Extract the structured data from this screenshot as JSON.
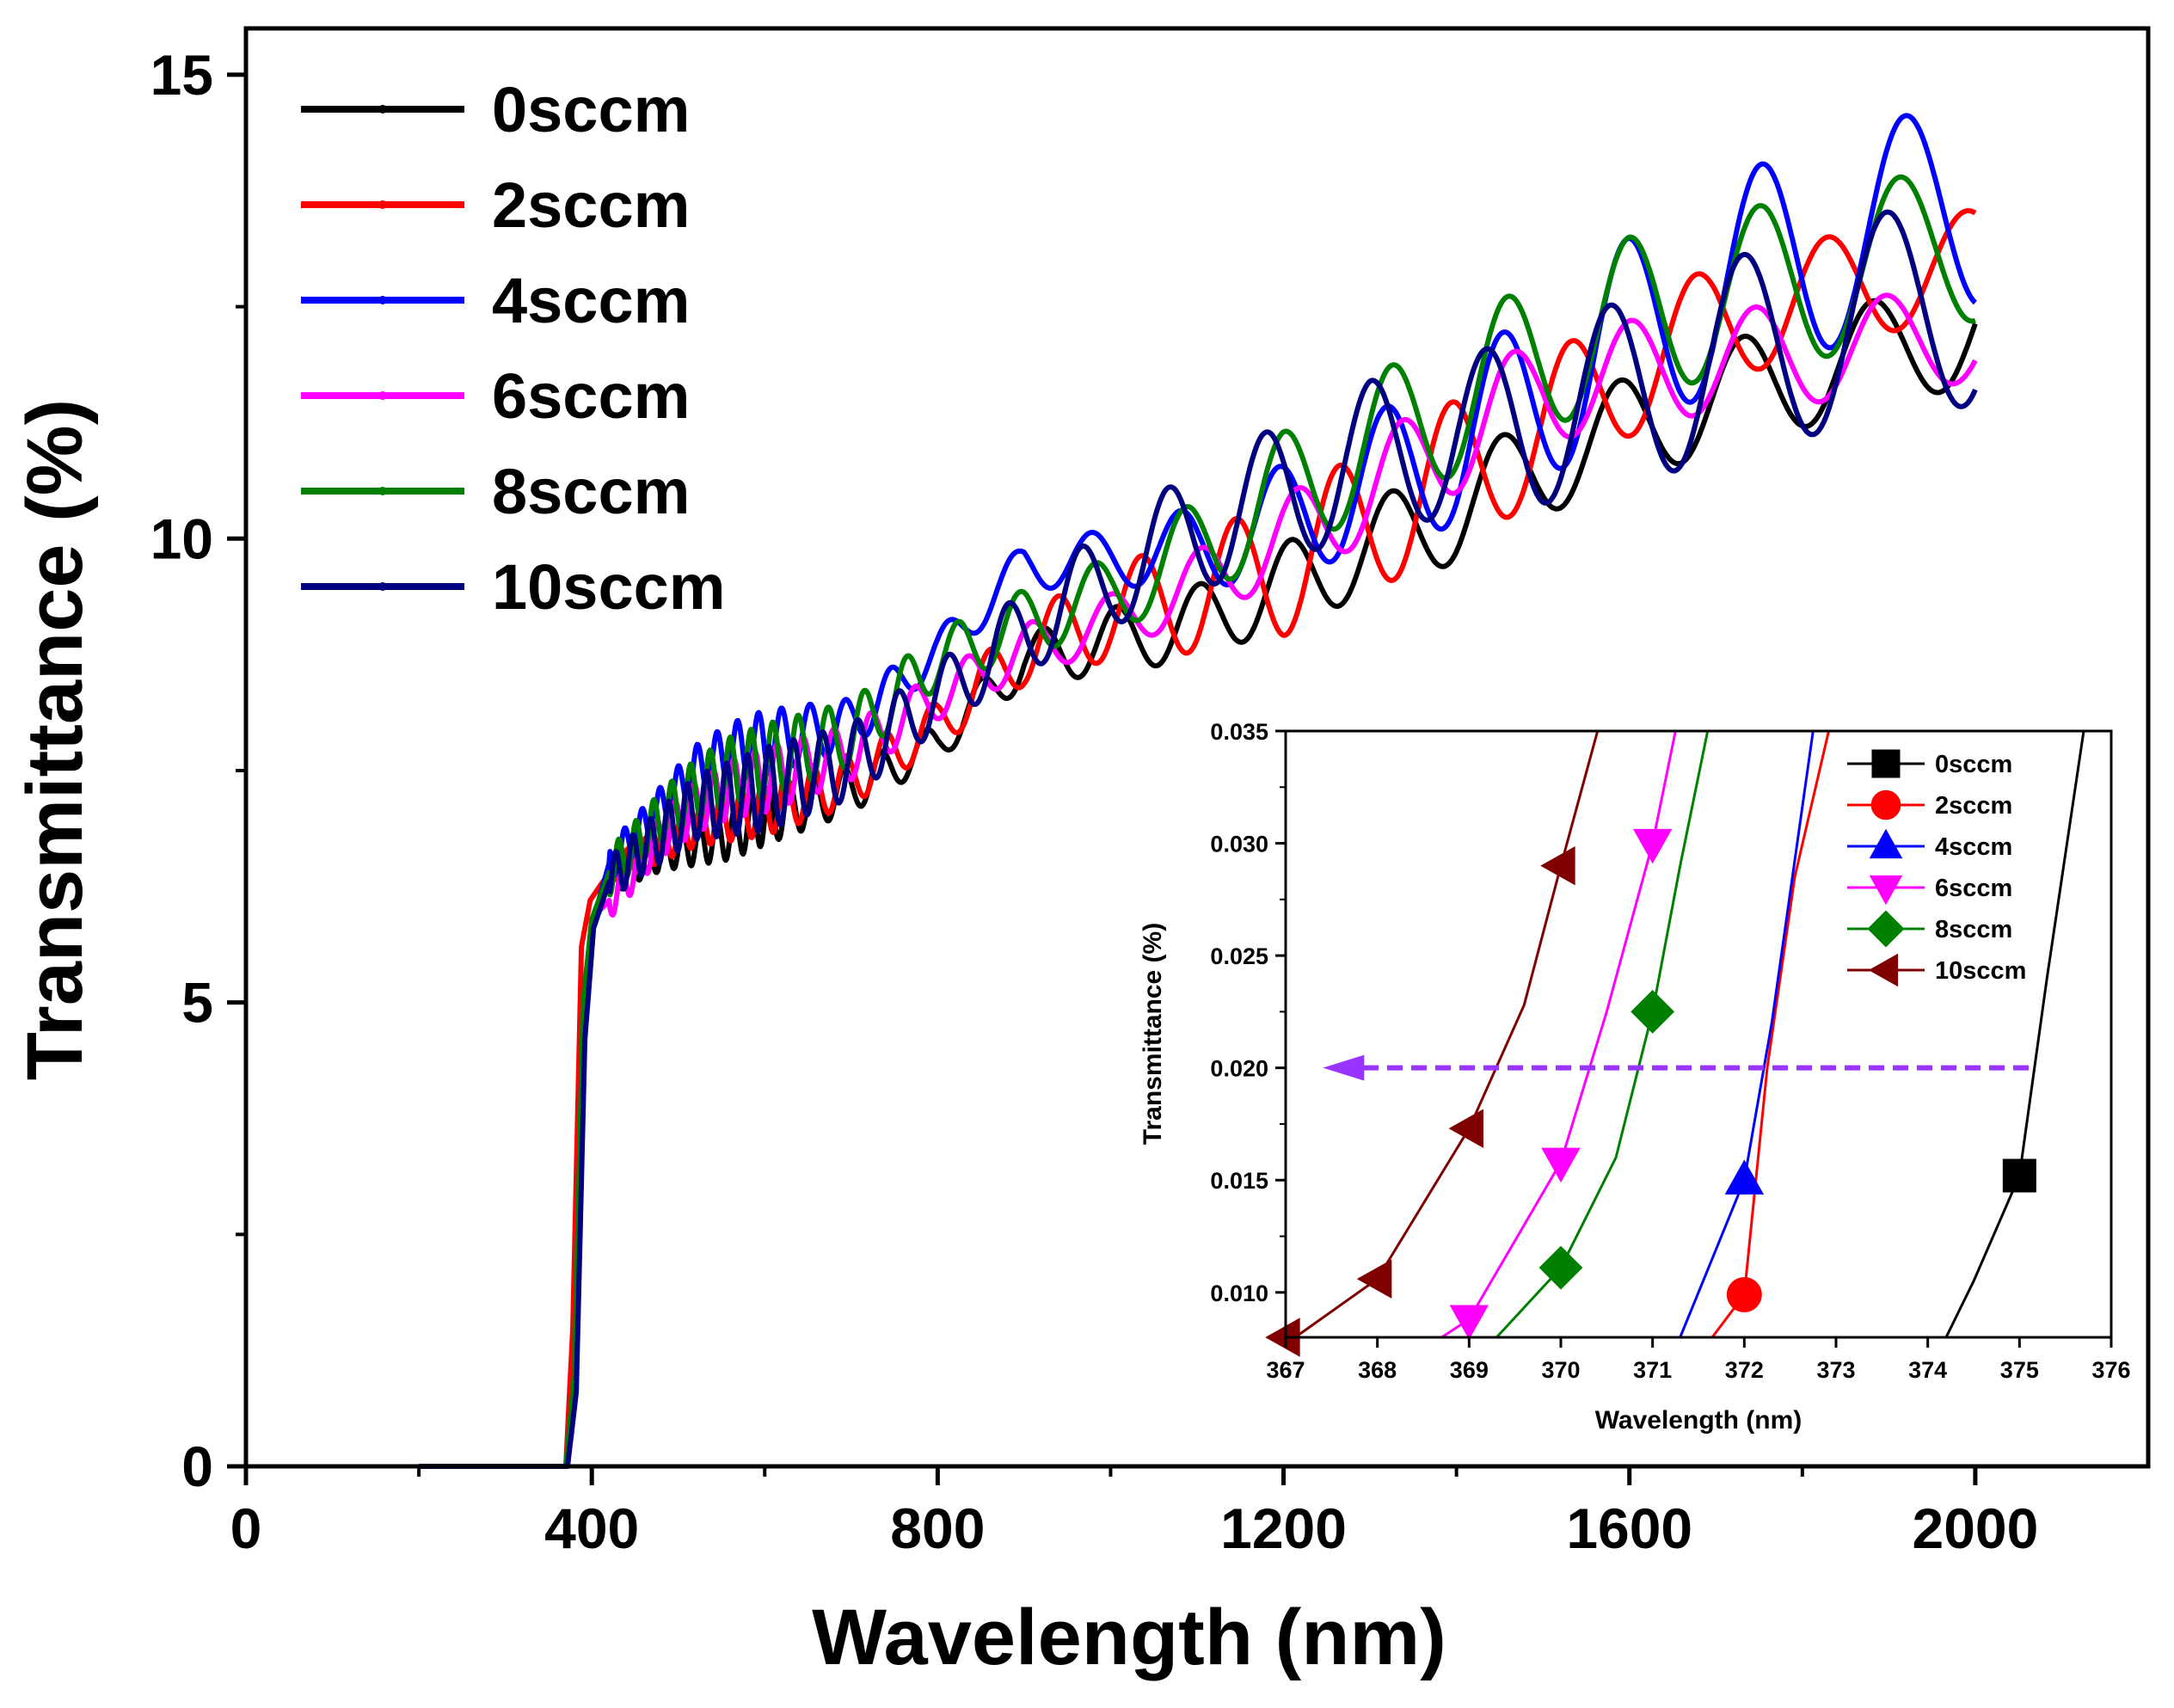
{
  "chart_data": [
    {
      "type": "line",
      "xlabel": "Wavelength (nm)",
      "ylabel": "Transmittance (%)",
      "xlim": [
        0,
        2200
      ],
      "ylim": [
        0,
        15.5
      ],
      "x_ticks": [
        "0",
        "400",
        "800",
        "1200",
        "1600",
        "2000"
      ],
      "y_ticks": [
        "0",
        "5",
        "10",
        "15"
      ],
      "grid": false,
      "legend_position": "top-left",
      "x_range": [
        200,
        2000
      ],
      "series": [
        {
          "name": "0sccm",
          "color": "#000000",
          "x": [
            200,
            370,
            380,
            390,
            400,
            420,
            440,
            480,
            520,
            560,
            600,
            700,
            800,
            900,
            1000,
            1100,
            1200,
            1300,
            1400,
            1500,
            1600,
            1700,
            1800,
            1900,
            2000
          ],
          "y": [
            0,
            0,
            1.0,
            4.8,
            5.9,
            6.3,
            6.4,
            6.6,
            6.7,
            6.8,
            7.0,
            7.3,
            7.8,
            8.7,
            8.9,
            9.1,
            9.5,
            9.9,
            10.3,
            10.8,
            11.2,
            11.5,
            11.8,
            12.0,
            12.3
          ],
          "osc_period": [
            20,
            20,
            60,
            90,
            110,
            130,
            140,
            150,
            160
          ],
          "osc_amp": [
            0.15,
            0.3,
            0.2,
            0.35,
            0.45,
            0.55,
            0.55,
            0.6,
            0.6
          ]
        },
        {
          "name": "2sccm",
          "color": "#ff0000",
          "x": [
            200,
            370,
            378,
            388,
            398,
            420,
            440,
            480,
            520,
            560,
            600,
            700,
            800,
            900,
            1000,
            1100,
            1200,
            1300,
            1400,
            1500,
            1600,
            1700,
            1800,
            1900,
            2000
          ],
          "y": [
            0,
            0,
            1.5,
            5.6,
            6.1,
            6.4,
            6.5,
            6.7,
            6.9,
            7.0,
            7.1,
            7.4,
            8.0,
            8.8,
            9.2,
            9.4,
            9.7,
            10.2,
            10.7,
            11.2,
            11.8,
            12.3,
            12.6,
            12.8,
            13.0
          ],
          "osc_period": [
            20,
            25,
            60,
            100,
            120,
            135,
            145,
            155,
            165
          ],
          "osc_amp": [
            0.15,
            0.3,
            0.25,
            0.5,
            0.75,
            0.8,
            0.7,
            0.6,
            0.55
          ]
        },
        {
          "name": "4sccm",
          "color": "#0000ff",
          "x": [
            200,
            370,
            382,
            392,
            402,
            420,
            440,
            480,
            520,
            560,
            600,
            700,
            800,
            900,
            1000,
            1100,
            1200,
            1300,
            1400,
            1500,
            1600,
            1700,
            1800,
            1900,
            2000
          ],
          "y": [
            0,
            0,
            1.0,
            4.8,
            5.9,
            6.5,
            6.7,
            7.1,
            7.5,
            7.7,
            7.8,
            8.0,
            8.8,
            9.7,
            9.8,
            9.9,
            10.2,
            10.6,
            11.0,
            11.6,
            12.2,
            12.7,
            13.1,
            13.4,
            13.6
          ],
          "osc_period": [
            20,
            25,
            70,
            100,
            120,
            135,
            150,
            165,
            180
          ],
          "osc_amp": [
            0.2,
            0.35,
            0.2,
            0.3,
            0.6,
            0.85,
            1.05,
            1.15,
            1.1
          ]
        },
        {
          "name": "6sccm",
          "color": "#ff00ff",
          "x": [
            200,
            370,
            380,
            390,
            400,
            420,
            440,
            480,
            520,
            560,
            600,
            700,
            800,
            900,
            1000,
            1100,
            1200,
            1300,
            1400,
            1500,
            1600,
            1700,
            1800,
            1900,
            2000
          ],
          "y": [
            0,
            0,
            1.0,
            5.0,
            5.9,
            6.1,
            6.3,
            6.8,
            7.1,
            7.3,
            7.4,
            7.7,
            8.3,
            8.8,
            9.1,
            9.5,
            10.0,
            10.5,
            11.1,
            11.6,
            11.8,
            11.9,
            12.0,
            12.1,
            12.2
          ],
          "osc_period": [
            20,
            25,
            60,
            100,
            115,
            130,
            140,
            150,
            160
          ],
          "osc_amp": [
            0.2,
            0.35,
            0.25,
            0.3,
            0.45,
            0.6,
            0.55,
            0.55,
            0.5
          ]
        },
        {
          "name": "8sccm",
          "color": "#008000",
          "x": [
            200,
            370,
            380,
            390,
            400,
            420,
            440,
            480,
            520,
            560,
            600,
            700,
            800,
            900,
            1000,
            1100,
            1200,
            1300,
            1400,
            1500,
            1600,
            1700,
            1800,
            1900,
            2000
          ],
          "y": [
            0,
            0,
            1.0,
            5.0,
            5.9,
            6.4,
            6.6,
            7.0,
            7.3,
            7.5,
            7.6,
            7.9,
            8.7,
            9.1,
            9.4,
            9.9,
            10.5,
            11.0,
            11.5,
            12.0,
            12.4,
            12.6,
            12.8,
            13.0,
            13.2
          ],
          "osc_period": [
            20,
            25,
            60,
            100,
            120,
            135,
            145,
            160,
            175
          ],
          "osc_amp": [
            0.25,
            0.4,
            0.3,
            0.4,
            0.65,
            0.8,
            0.85,
            0.9,
            0.85
          ]
        },
        {
          "name": "10sccm",
          "color": "#000080",
          "x": [
            200,
            372,
            382,
            392,
            402,
            420,
            440,
            480,
            520,
            560,
            600,
            700,
            800,
            900,
            1000,
            1100,
            1200,
            1300,
            1400,
            1500,
            1600,
            1700,
            1800,
            1900,
            2000
          ],
          "y": [
            0,
            0,
            0.8,
            4.6,
            5.8,
            6.3,
            6.5,
            6.8,
            7.1,
            7.2,
            7.3,
            7.6,
            8.3,
            9.0,
            9.6,
            10.1,
            10.5,
            10.9,
            11.1,
            11.3,
            11.6,
            11.9,
            12.2,
            12.4,
            12.6
          ],
          "osc_period": [
            20,
            25,
            60,
            100,
            120,
            135,
            150,
            165,
            180
          ],
          "osc_amp": [
            0.25,
            0.45,
            0.35,
            0.55,
            0.75,
            0.85,
            1.0,
            1.1,
            1.15
          ]
        }
      ]
    },
    {
      "type": "line",
      "xlabel": "Wavelength (nm)",
      "ylabel": "Transmittance (%)",
      "xlim": [
        367,
        376
      ],
      "ylim": [
        0.008,
        0.035
      ],
      "x_ticks": [
        "367",
        "368",
        "369",
        "370",
        "371",
        "372",
        "373",
        "374",
        "375",
        "376"
      ],
      "y_ticks": [
        "0.010",
        "0.015",
        "0.020",
        "0.025",
        "0.030",
        "0.035"
      ],
      "grid": false,
      "legend_position": "top-right",
      "series": [
        {
          "name": "0sccm",
          "color": "#000000",
          "marker": "square",
          "x": [
            374.2,
            374.5,
            375.0,
            375.3,
            375.7
          ],
          "y": [
            0.008,
            0.0105,
            0.0152,
            0.024,
            0.035
          ]
        },
        {
          "name": "2sccm",
          "color": "#ff0000",
          "marker": "circle",
          "x": [
            371.65,
            372.0,
            372.25,
            372.55,
            372.92
          ],
          "y": [
            0.008,
            0.0099,
            0.02,
            0.0285,
            0.035
          ]
        },
        {
          "name": "4sccm",
          "color": "#0000ff",
          "marker": "triangle-up",
          "x": [
            371.3,
            371.6,
            372.0,
            372.3,
            372.75
          ],
          "y": [
            0.008,
            0.011,
            0.015,
            0.022,
            0.035
          ]
        },
        {
          "name": "6sccm",
          "color": "#ff00ff",
          "marker": "triangle-down",
          "x": [
            368.7,
            369.0,
            370.0,
            370.5,
            371.0,
            371.25
          ],
          "y": [
            0.008,
            0.0088,
            0.0158,
            0.0225,
            0.03,
            0.035
          ]
        },
        {
          "name": "8sccm",
          "color": "#008000",
          "marker": "diamond",
          "x": [
            369.3,
            370.0,
            370.6,
            371.0,
            371.3,
            371.6
          ],
          "y": [
            0.008,
            0.0111,
            0.016,
            0.0225,
            0.029,
            0.035
          ]
        },
        {
          "name": "10sccm",
          "color": "#800000",
          "marker": "triangle-left",
          "x": [
            367.0,
            368.0,
            369.0,
            369.6,
            370.0,
            370.4
          ],
          "y": [
            0.0077,
            0.0106,
            0.0173,
            0.0228,
            0.029,
            0.035
          ]
        }
      ],
      "annotation": {
        "type": "dashed-arrow",
        "color": "#9933ff",
        "from": [
          375.1,
          0.02
        ],
        "to": [
          367.5,
          0.02
        ]
      }
    }
  ]
}
